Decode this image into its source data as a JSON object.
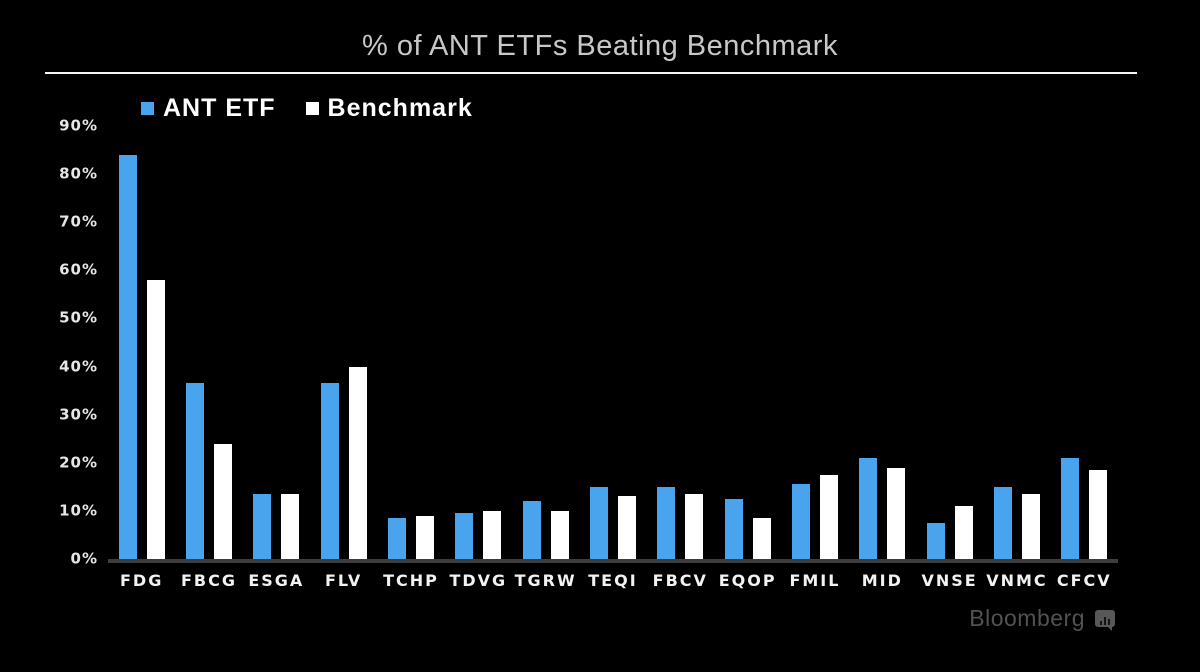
{
  "chart_data": {
    "type": "bar",
    "title": "% of ANT ETFs Beating Benchmark",
    "xlabel": "",
    "ylabel": "",
    "categories": [
      "FDG",
      "FBCG",
      "ESGA",
      "FLV",
      "TCHP",
      "TDVG",
      "TGRW",
      "TEQI",
      "FBCV",
      "EQOP",
      "FMIL",
      "MID",
      "VNSE",
      "VNMC",
      "CFCV"
    ],
    "series": [
      {
        "name": "ANT ETF",
        "color": "#4aa4ed",
        "values": [
          84,
          36.5,
          13.5,
          36.5,
          8.5,
          9.5,
          12,
          15,
          15,
          12.5,
          15.5,
          21,
          7.5,
          15,
          21
        ]
      },
      {
        "name": "Benchmark",
        "color": "#ffffff",
        "values": [
          58,
          24,
          13.5,
          40,
          9,
          10,
          10,
          13,
          13.5,
          8.5,
          17.5,
          19,
          11,
          13.5,
          18.5
        ]
      }
    ],
    "y_ticks": [
      "0%",
      "10%",
      "20%",
      "30%",
      "40%",
      "50%",
      "60%",
      "70%",
      "80%",
      "90%"
    ],
    "ylim": [
      0,
      90
    ],
    "grid": false,
    "legend_position": "top-left",
    "background": "#000000",
    "axis_line_color": "#3d3d3d"
  },
  "footer": {
    "brand": "Bloomberg"
  }
}
